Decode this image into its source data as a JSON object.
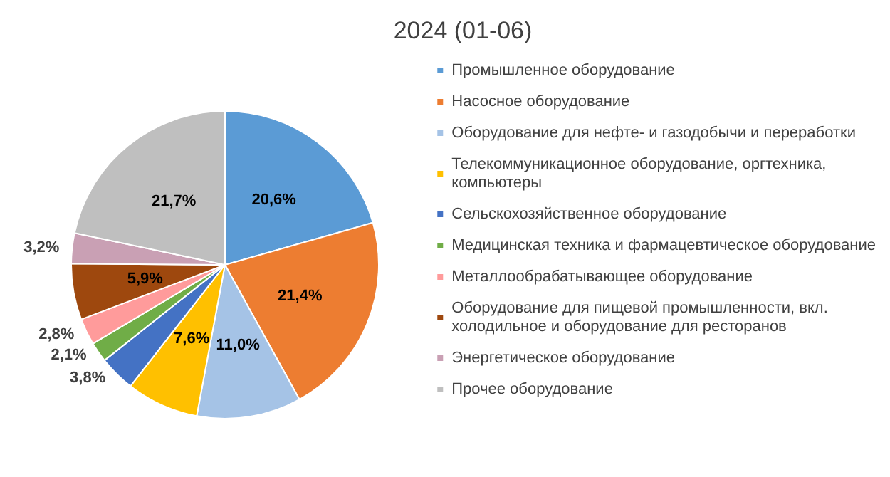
{
  "chart_data": {
    "type": "pie",
    "title": "2024 (01-06)",
    "categories": [
      "Промышленное оборудование",
      "Насосное оборудование",
      "Оборудование для нефте- и газодобычи и переработки",
      "Телекоммуникационное оборудование, оргтехника, компьютеры",
      "Сельскохозяйственное оборудование",
      "Медицинская техника и фармацевтическое оборудование",
      "Металлообрабатывающее оборудование",
      "Оборудование для пищевой промышленности, вкл. холодильное и оборудование для ресторанов",
      "Энергетическое оборудование",
      "Прочее оборудование"
    ],
    "values": [
      20.6,
      21.4,
      11.0,
      7.6,
      3.8,
      2.1,
      2.8,
      5.9,
      3.2,
      21.7
    ],
    "value_labels": [
      "20,6%",
      "21,4%",
      "11,0%",
      "7,6%",
      "3,8%",
      "2,1%",
      "2,8%",
      "5,9%",
      "3,2%",
      "21,7%"
    ],
    "colors": [
      "#5b9bd5",
      "#ed7d31",
      "#a5c3e6",
      "#ffc000",
      "#4472c4",
      "#70ad47",
      "#ff9b9b",
      "#9e480e",
      "#c9a0b4",
      "#bfbfbf"
    ],
    "legend": "right"
  }
}
